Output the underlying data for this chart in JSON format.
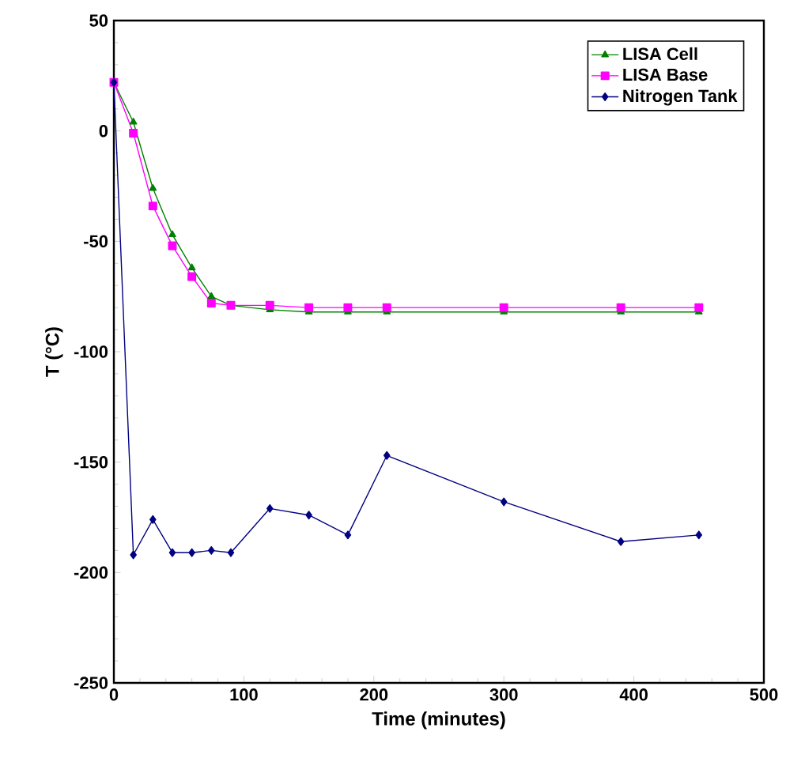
{
  "chart_data": {
    "type": "line",
    "xlabel": "Time (minutes)",
    "ylabel": "T (°C)",
    "xlim": [
      0,
      500
    ],
    "ylim": [
      -250,
      50
    ],
    "xticks": [
      0,
      100,
      200,
      300,
      400,
      500
    ],
    "yticks": [
      -250,
      -200,
      -150,
      -100,
      -50,
      0,
      50
    ],
    "legend": "top right",
    "grid": false,
    "line_style": "solid",
    "series": [
      {
        "name": "LISA Cell",
        "color": "#008000",
        "marker": "triangle",
        "x": [
          0,
          15,
          30,
          45,
          60,
          75,
          90,
          120,
          150,
          180,
          210,
          300,
          390,
          450
        ],
        "values": [
          22,
          4,
          -26,
          -47,
          -62,
          -75,
          -79,
          -81,
          -82,
          -82,
          -82,
          -82,
          -82,
          -82
        ]
      },
      {
        "name": "LISA Base",
        "color": "#ff00ff",
        "marker": "square",
        "x": [
          0,
          15,
          30,
          45,
          60,
          75,
          90,
          120,
          150,
          180,
          210,
          300,
          390,
          450
        ],
        "values": [
          22,
          -1,
          -34,
          -52,
          -66,
          -78,
          -79,
          -79,
          -80,
          -80,
          -80,
          -80,
          -80,
          -80
        ]
      },
      {
        "name": "Nitrogen Tank",
        "color": "#000080",
        "marker": "diamond",
        "x": [
          0,
          15,
          30,
          45,
          60,
          75,
          90,
          120,
          150,
          180,
          210,
          300,
          390,
          450
        ],
        "values": [
          22,
          -192,
          -176,
          -191,
          -191,
          -190,
          -191,
          -171,
          -174,
          -183,
          -147,
          -168,
          -186,
          -183
        ]
      }
    ]
  }
}
